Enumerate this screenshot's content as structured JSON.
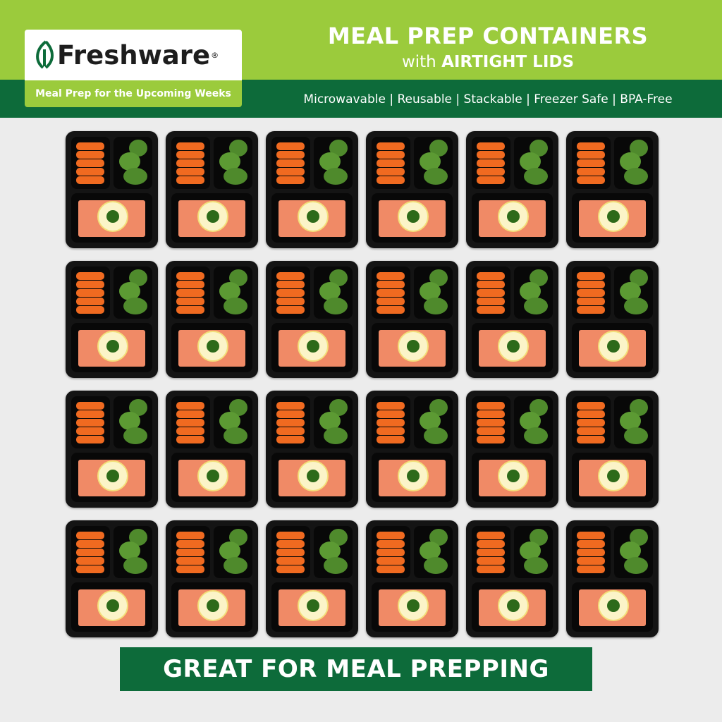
{
  "brand": {
    "name": "Freshware",
    "registered": "®",
    "tagline": "Meal Prep for the Upcoming Weeks"
  },
  "header": {
    "title": "MEAL PREP CONTAINERS",
    "subtitle_prefix": "with",
    "subtitle_emphasis": "AIRTIGHT LIDS",
    "features": "Microwavable | Reusable | Stackable | Freezer Safe | BPA-Free"
  },
  "product_grid": {
    "rows": 4,
    "columns": 6,
    "contents": [
      "carrots",
      "broccoli",
      "salmon with lemon"
    ]
  },
  "banner": {
    "text": "GREAT FOR MEAL PREPPING"
  },
  "colors": {
    "lime": "#9bcb3c",
    "dark_green": "#0d6b3a",
    "background": "#ececec"
  }
}
